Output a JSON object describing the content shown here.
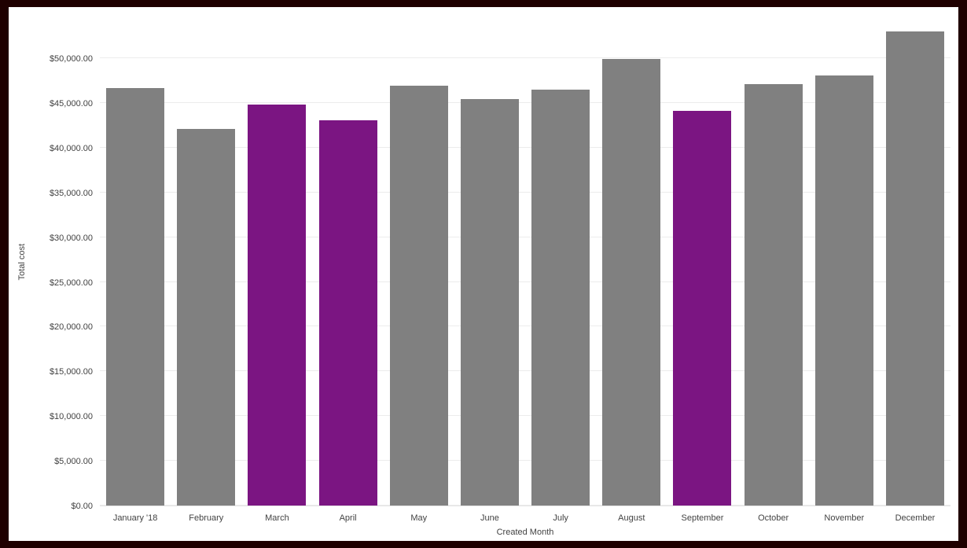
{
  "chart_data": {
    "type": "bar",
    "title": "",
    "xlabel": "Created Month",
    "ylabel": "Total cost",
    "categories": [
      "January '18",
      "February",
      "March",
      "April",
      "May",
      "June",
      "July",
      "August",
      "September",
      "October",
      "November",
      "December"
    ],
    "values": [
      46700,
      42100,
      44800,
      43100,
      46900,
      45400,
      46500,
      49900,
      44100,
      47100,
      48100,
      53000
    ],
    "bar_colors": [
      "#808080",
      "#808080",
      "#7b1582",
      "#7b1582",
      "#808080",
      "#808080",
      "#808080",
      "#808080",
      "#7b1582",
      "#808080",
      "#808080",
      "#808080"
    ],
    "y_ticks": [
      "$0.00",
      "$5,000.00",
      "$10,000.00",
      "$15,000.00",
      "$20,000.00",
      "$25,000.00",
      "$30,000.00",
      "$35,000.00",
      "$40,000.00",
      "$45,000.00",
      "$50,000.00"
    ],
    "y_tick_values": [
      0,
      5000,
      10000,
      15000,
      20000,
      25000,
      30000,
      35000,
      40000,
      45000,
      50000
    ],
    "ylim": [
      0,
      50000
    ],
    "grid": true,
    "legend": "none",
    "colors": {
      "default_bar": "#808080",
      "highlight_bar": "#7b1582",
      "frame": "#1f0000",
      "background": "#ffffff",
      "gridline": "#ececec",
      "text": "#424242"
    }
  }
}
